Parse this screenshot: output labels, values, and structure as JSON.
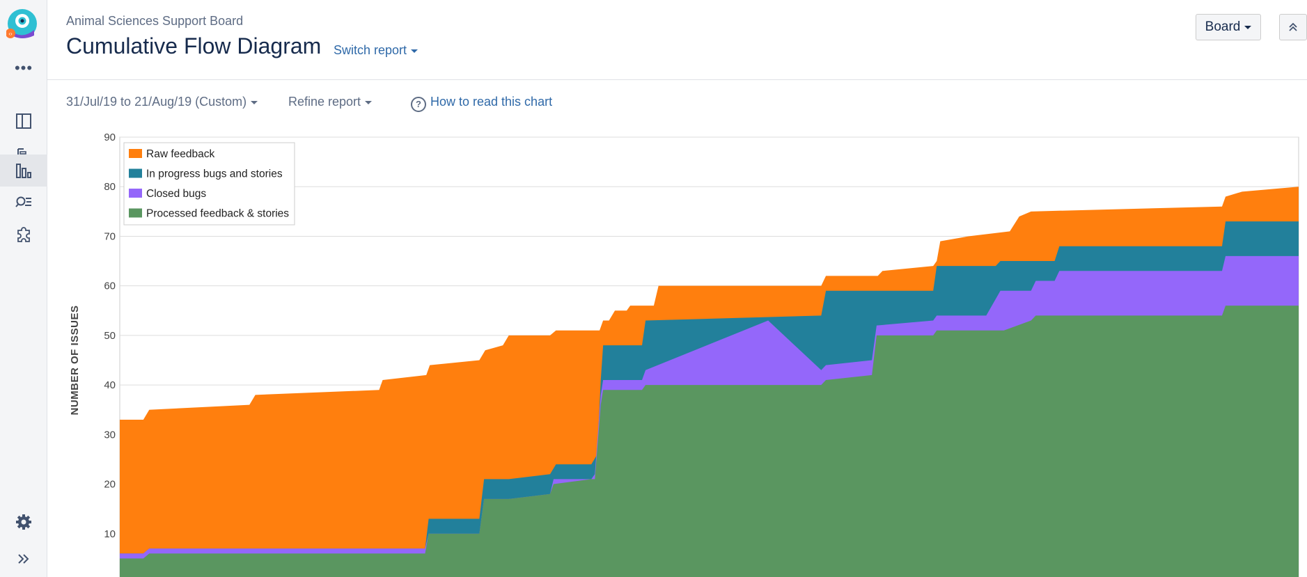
{
  "header": {
    "board_name": "Animal Sciences Support Board",
    "title": "Cumulative Flow Diagram",
    "switch_report": "Switch report",
    "board_button": "Board"
  },
  "toolbar": {
    "date_range": "31/Jul/19 to 21/Aug/19 (Custom)",
    "refine": "Refine report",
    "how_to": "How to read this chart"
  },
  "sidebar": {
    "more": "•••",
    "items": [
      {
        "icon": "board-icon"
      },
      {
        "icon": "roadmap-icon"
      },
      {
        "icon": "reports-icon",
        "active": true
      },
      {
        "icon": "issue-search-icon"
      },
      {
        "icon": "addons-icon"
      }
    ],
    "bottom": [
      {
        "icon": "settings-icon"
      },
      {
        "icon": "expand-icon"
      }
    ]
  },
  "chart_data": {
    "type": "area",
    "ylabel": "NUMBER OF ISSUES",
    "ylim": [
      0,
      90
    ],
    "yticks": [
      0,
      10,
      20,
      30,
      40,
      50,
      60,
      70,
      80,
      90
    ],
    "x_domain": [
      0,
      100
    ],
    "grid": true,
    "legend_position": "top-left",
    "series": [
      {
        "name": "Raw feedback",
        "color": "#ff7f0e"
      },
      {
        "name": "In progress bugs and stories",
        "color": "#22809b"
      },
      {
        "name": "Closed bugs",
        "color": "#9467fa"
      },
      {
        "name": "Processed feedback & stories",
        "color": "#5a9660"
      }
    ],
    "bands": {
      "total": [
        [
          0,
          33
        ],
        [
          2,
          33
        ],
        [
          2.5,
          35
        ],
        [
          11,
          36
        ],
        [
          11.5,
          38
        ],
        [
          22,
          39
        ],
        [
          22.3,
          41
        ],
        [
          26,
          42
        ],
        [
          26.3,
          44
        ],
        [
          30.5,
          45
        ],
        [
          31,
          47
        ],
        [
          32.5,
          48
        ],
        [
          33,
          50
        ],
        [
          36.5,
          50
        ],
        [
          37,
          51
        ],
        [
          40.7,
          51
        ],
        [
          41,
          53
        ],
        [
          41.5,
          53
        ],
        [
          42,
          55
        ],
        [
          43,
          55
        ],
        [
          43.3,
          56
        ],
        [
          45.3,
          56
        ],
        [
          45.7,
          60
        ],
        [
          59.5,
          60
        ],
        [
          59.9,
          62
        ],
        [
          64.3,
          62
        ],
        [
          64.7,
          63
        ],
        [
          69,
          64
        ],
        [
          69.3,
          65
        ],
        [
          69.6,
          69
        ],
        [
          72,
          70
        ],
        [
          75.5,
          71
        ],
        [
          76.3,
          74
        ],
        [
          77.3,
          75
        ],
        [
          93.5,
          76
        ],
        [
          93.8,
          78
        ],
        [
          95.2,
          79
        ],
        [
          100,
          80
        ]
      ],
      "in_progress": [
        [
          0,
          6
        ],
        [
          2,
          6
        ],
        [
          2.5,
          7
        ],
        [
          25.9,
          7
        ],
        [
          26.2,
          13
        ],
        [
          30.5,
          13
        ],
        [
          30.9,
          21
        ],
        [
          33,
          21
        ],
        [
          36.5,
          22
        ],
        [
          37,
          24
        ],
        [
          40,
          24
        ],
        [
          40.5,
          26
        ],
        [
          40.8,
          41
        ],
        [
          41,
          48
        ],
        [
          44.3,
          48
        ],
        [
          44.6,
          53
        ],
        [
          59.5,
          54
        ],
        [
          59.9,
          59
        ],
        [
          69,
          59
        ],
        [
          69.3,
          64
        ],
        [
          74.3,
          64
        ],
        [
          74.7,
          65
        ],
        [
          79.3,
          65
        ],
        [
          79.7,
          68
        ],
        [
          93.5,
          68
        ],
        [
          93.8,
          73
        ],
        [
          100,
          73
        ]
      ],
      "closed": [
        [
          0,
          6
        ],
        [
          2,
          6
        ],
        [
          2.5,
          7
        ],
        [
          25.9,
          7
        ],
        [
          26.2,
          10
        ],
        [
          30.5,
          10
        ],
        [
          30.9,
          17
        ],
        [
          33,
          17
        ],
        [
          36.5,
          18
        ],
        [
          36.8,
          21
        ],
        [
          40,
          21
        ],
        [
          40.3,
          22
        ],
        [
          40.8,
          38
        ],
        [
          41,
          41
        ],
        [
          44.3,
          41
        ],
        [
          44.6,
          43
        ],
        [
          59.5,
          43
        ],
        [
          59.9,
          44
        ],
        [
          63.8,
          45
        ],
        [
          64.2,
          52
        ],
        [
          55,
          53
        ],
        [
          69,
          53
        ],
        [
          69.3,
          54
        ],
        [
          73.5,
          54
        ],
        [
          74.7,
          59
        ],
        [
          77.3,
          59
        ],
        [
          77.7,
          61
        ],
        [
          79.3,
          61
        ],
        [
          79.7,
          63
        ],
        [
          93.5,
          63
        ],
        [
          93.8,
          66
        ],
        [
          100,
          66
        ]
      ],
      "processed": [
        [
          0,
          5
        ],
        [
          2,
          5
        ],
        [
          2.5,
          6
        ],
        [
          25.9,
          6
        ],
        [
          26.2,
          10
        ],
        [
          30.5,
          10
        ],
        [
          30.9,
          17
        ],
        [
          33,
          17
        ],
        [
          36.5,
          18
        ],
        [
          36.8,
          20
        ],
        [
          40,
          21
        ],
        [
          40.3,
          21
        ],
        [
          40.8,
          36
        ],
        [
          41,
          39
        ],
        [
          44.3,
          39
        ],
        [
          44.6,
          40
        ],
        [
          59.5,
          40
        ],
        [
          59.9,
          41
        ],
        [
          63.8,
          42
        ],
        [
          64.2,
          50
        ],
        [
          69,
          50
        ],
        [
          69.3,
          51
        ],
        [
          73.5,
          51
        ],
        [
          74,
          51
        ],
        [
          75,
          51
        ],
        [
          77.3,
          53
        ],
        [
          77.7,
          54
        ],
        [
          93.5,
          54
        ],
        [
          93.8,
          56
        ],
        [
          100,
          56
        ]
      ]
    }
  }
}
